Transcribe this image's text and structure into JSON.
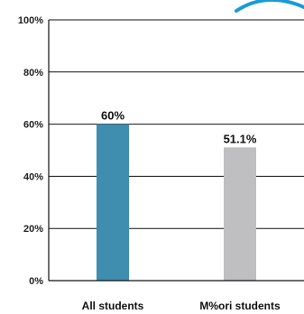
{
  "chart_data": {
    "type": "bar",
    "categories": [
      "All students",
      "M%ori students"
    ],
    "values": [
      60,
      51.1
    ],
    "value_labels": [
      "60%",
      "51.1%"
    ],
    "ylim": [
      0,
      100
    ],
    "yticks": [
      0,
      20,
      40,
      60,
      80,
      100
    ],
    "ytick_labels": [
      "0%",
      "20%",
      "40%",
      "60%",
      "80%",
      "100%"
    ],
    "grid": true,
    "bar_colors": [
      "#3f8daf",
      "#bfbfc2"
    ],
    "title": "",
    "xlabel": "",
    "ylabel": ""
  },
  "decor": {
    "accent_color": "#1a9ad7"
  }
}
